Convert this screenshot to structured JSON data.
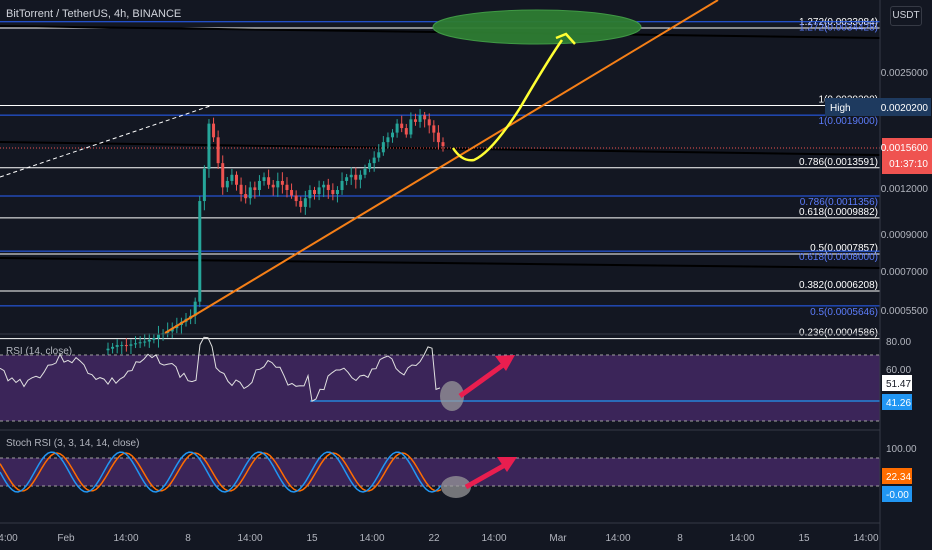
{
  "header": {
    "title": "BitTorrent / TetherUS, 4h, BINANCE",
    "currency": "USDT"
  },
  "colors": {
    "background": "#131722",
    "candle_up": "#26a69a",
    "candle_down": "#ef5350",
    "trendline": "#f57f17",
    "projection": "#ffff00",
    "target_zone": "#2e7d32",
    "arrow": "#e91e4f",
    "fib_white": "#ffffff",
    "fib_blue": "#2962ff",
    "rsi_band": "#4a2a6b",
    "stoch_k": "#2196f3",
    "stoch_d": "#ff6d00"
  },
  "price_axis": {
    "ticks": [
      "0.0025000",
      "0.0012000",
      "0.0009000",
      "0.0007000",
      "0.0005500"
    ],
    "high_label": "High",
    "high_value": "0.0020200",
    "current_price": "0.0015600",
    "countdown": "01:37:10"
  },
  "fib_levels_white": [
    {
      "label": "1.272(0.0033084)",
      "price": 0.0033084
    },
    {
      "label": "1(0.0020200)",
      "price": 0.00202
    },
    {
      "label": "0.786(0.0013591)",
      "price": 0.0013591
    },
    {
      "label": "0.618(0.0009882)",
      "price": 0.0009882
    },
    {
      "label": "0.5(0.0007857)",
      "price": 0.0007857
    },
    {
      "label": "0.382(0.0006208)",
      "price": 0.0006208
    },
    {
      "label": "0.236(0.0004586)",
      "price": 0.0004586
    }
  ],
  "fib_levels_blue": [
    {
      "label": "1.272(0.0034428)",
      "price": 0.0034428
    },
    {
      "label": "1(0.0019000)",
      "price": 0.0019
    },
    {
      "label": "0.786(0.0011356)",
      "price": 0.0011356
    },
    {
      "label": "0.618(0.0008000)",
      "price": 0.0008
    },
    {
      "label": "0.5(0.0005646)",
      "price": 0.0005646
    }
  ],
  "rsi": {
    "label": "RSI (14, close)",
    "ticks": [
      "80.00",
      "60.00"
    ],
    "value1": "51.47",
    "value2": "41.26"
  },
  "stoch": {
    "label": "Stoch RSI (3, 3, 14, 14, close)",
    "ticks": [
      "100.00"
    ],
    "k_value": "22.34",
    "d_value": "-0.00"
  },
  "time_axis": {
    "labels": [
      "4:00",
      "Feb",
      "14:00",
      "8",
      "14:00",
      "15",
      "14:00",
      "22",
      "14:00",
      "Mar",
      "14:00",
      "8",
      "14:00",
      "15",
      "14:00"
    ]
  },
  "chart_data": {
    "type": "candlestick",
    "symbol": "BitTorrent / TetherUS, 4h, BINANCE",
    "y_scale": "log",
    "ylim": [
      0.00043,
      0.0036
    ],
    "price_ticks": [
      0.0025,
      0.0012,
      0.0009,
      0.0007,
      0.00055
    ],
    "x_labels": [
      "4:00",
      "Feb",
      "14:00",
      "8",
      "14:00",
      "15",
      "14:00",
      "22",
      "14:00",
      "Mar",
      "14:00",
      "8",
      "14:00",
      "15",
      "14:00"
    ],
    "high": 0.00202,
    "last_price": 0.00156,
    "close_series": [
      0.00043,
      0.000435,
      0.00044,
      0.00044,
      0.000438,
      0.000442,
      0.000445,
      0.000448,
      0.00045,
      0.000455,
      0.00046,
      0.00047,
      0.000475,
      0.00048,
      0.00049,
      0.0005,
      0.00051,
      0.00052,
      0.00053,
      0.00058,
      0.0011,
      0.00135,
      0.0018,
      0.00165,
      0.0014,
      0.0012,
      0.00125,
      0.0013,
      0.00122,
      0.00115,
      0.00112,
      0.0012,
      0.00118,
      0.00125,
      0.00128,
      0.00122,
      0.0012,
      0.00125,
      0.00122,
      0.00118,
      0.00114,
      0.0011,
      0.00106,
      0.00112,
      0.00118,
      0.00115,
      0.0012,
      0.00122,
      0.00118,
      0.00115,
      0.00118,
      0.00125,
      0.00128,
      0.0013,
      0.00126,
      0.0013,
      0.00135,
      0.0014,
      0.00145,
      0.0015,
      0.0016,
      0.00165,
      0.0017,
      0.0018,
      0.00175,
      0.00168,
      0.00185,
      0.00182,
      0.0019,
      0.00185,
      0.00178,
      0.0017,
      0.0016,
      0.00156
    ],
    "rsi": {
      "levels": [
        30,
        70
      ],
      "last": 51.47,
      "prior_low": 41.26
    },
    "stoch_rsi": {
      "k": 22.34,
      "d": 0.0
    }
  }
}
